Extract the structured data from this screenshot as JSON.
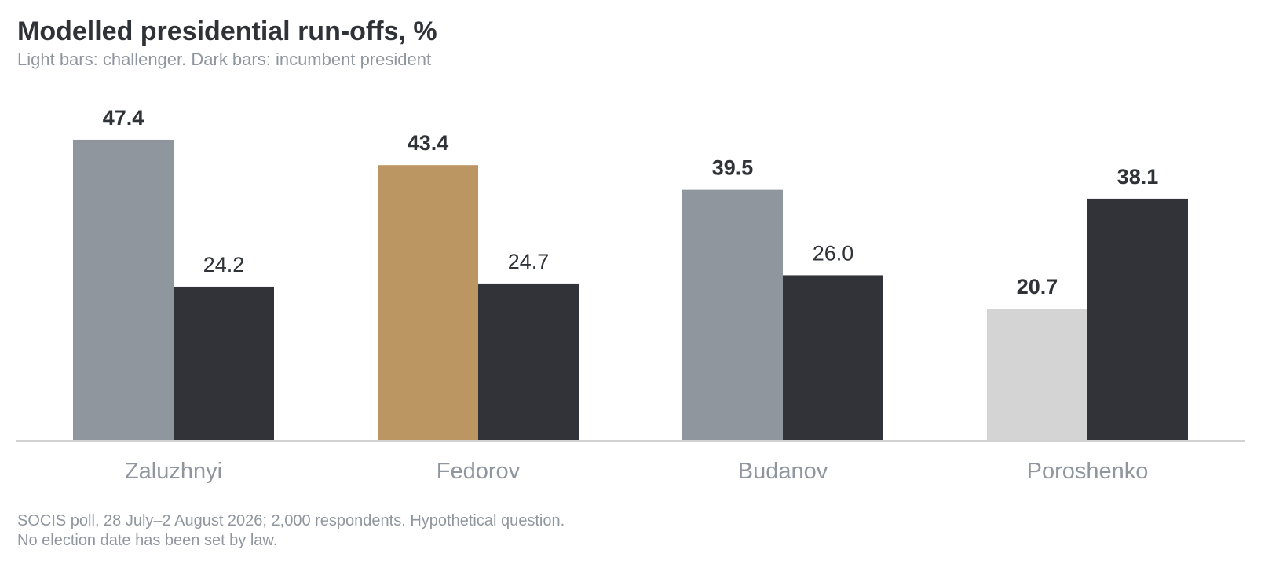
{
  "chart_data": {
    "type": "bar",
    "title": "Modelled presidential run-offs, %",
    "subtitle": "Light bars: challenger. Dark bars: incumbent president",
    "categories": [
      "Zaluzhnyi",
      "Fedorov",
      "Budanov",
      "Poroshenko"
    ],
    "challenger": {
      "values": [
        47.4,
        43.4,
        39.5,
        20.7
      ],
      "labels": [
        "47.4",
        "43.4",
        "39.5",
        "20.7"
      ],
      "label_bold": [
        true,
        true,
        true,
        true
      ],
      "colors": [
        "#90969e",
        "#bc9662",
        "#90969e",
        "#d4d4d4"
      ]
    },
    "incumbent": {
      "values": [
        24.2,
        24.7,
        26.0,
        38.1
      ],
      "labels": [
        "24.2",
        "24.7",
        "26.0",
        "38.1"
      ],
      "label_bold": [
        false,
        false,
        false,
        true
      ],
      "color": "#313338"
    },
    "ylim": [
      0,
      50
    ],
    "grid": false,
    "legend": "none"
  },
  "footnote": {
    "line1": "SOCIS poll, 28 July–2 August 2026; 2,000 respondents. Hypothetical question.",
    "line2": "No election date has been set by law."
  }
}
